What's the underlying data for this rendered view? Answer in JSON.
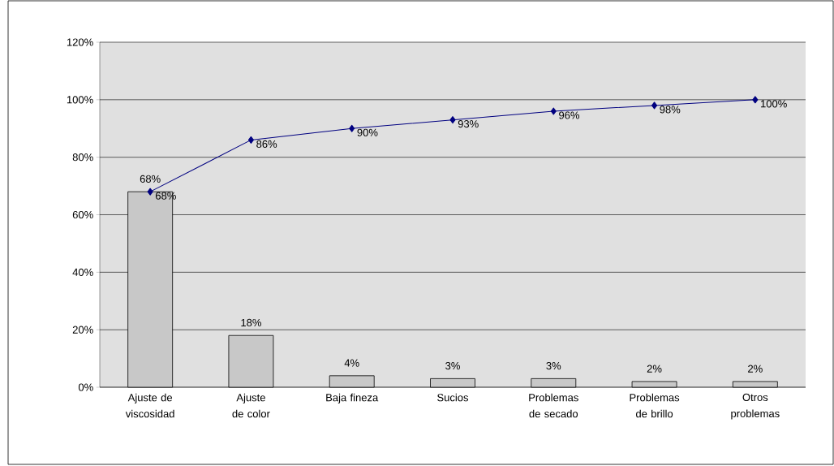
{
  "chart_data": {
    "type": "bar",
    "categories": [
      "Ajuste de viscosidad",
      "Ajuste de color",
      "Baja fineza",
      "Sucios",
      "Problemas de secado",
      "Problemas de brillo",
      "Otros problemas"
    ],
    "series": [
      {
        "color": "#c8c8c8",
        "values": [
          68,
          18,
          4,
          3,
          3,
          2,
          2
        ],
        "value_labels": [
          "68%",
          "18%",
          "4%",
          "3%",
          "3%",
          "2%",
          "2%"
        ]
      },
      {
        "type": "line",
        "color": "#000080",
        "values": [
          68,
          86,
          90,
          93,
          96,
          98,
          100
        ],
        "value_labels": [
          "68%",
          "86%",
          "90%",
          "93%",
          "96%",
          "98%",
          "100%"
        ]
      }
    ],
    "ylim": [
      0,
      120
    ],
    "yticks": [
      {
        "value": 0,
        "label": "0%"
      },
      {
        "value": 20,
        "label": "20%"
      },
      {
        "value": 40,
        "label": "40%"
      },
      {
        "value": 60,
        "label": "60%"
      },
      {
        "value": 80,
        "label": "80%"
      },
      {
        "value": 100,
        "label": "100%"
      },
      {
        "value": 120,
        "label": "120%"
      }
    ],
    "grid": "y",
    "marker": "diamond"
  }
}
